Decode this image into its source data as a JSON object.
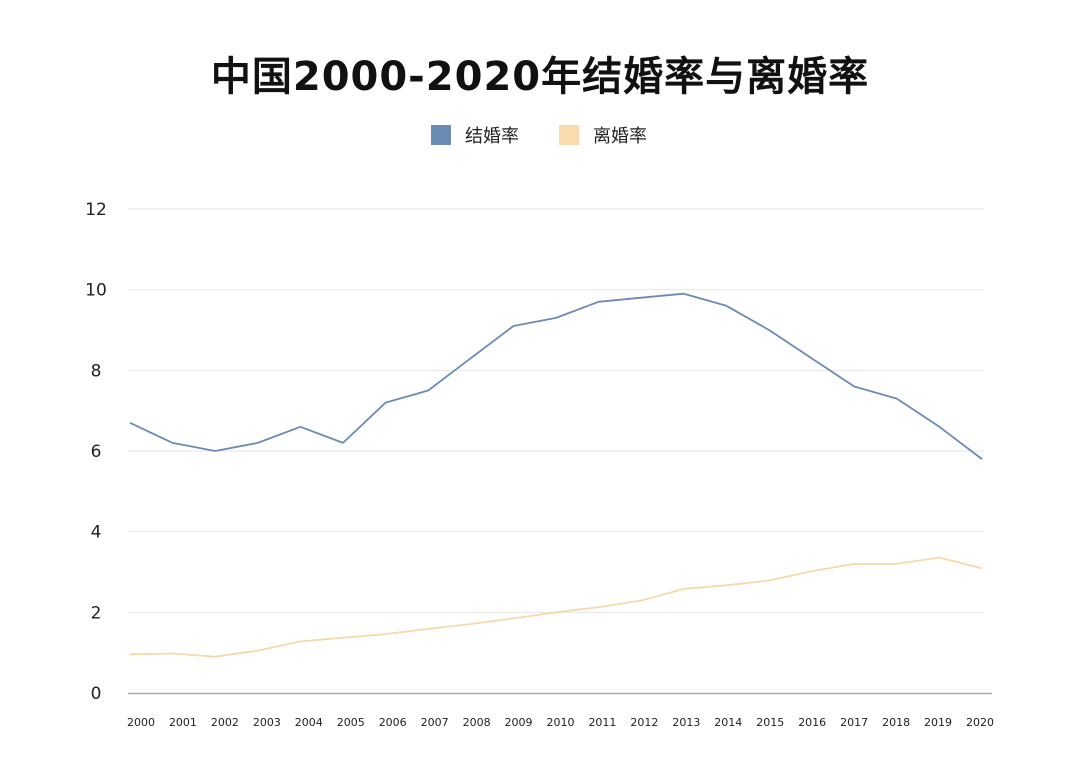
{
  "chart_data": {
    "type": "line",
    "title": "中国2000-2020年结婚率与离婚率",
    "x": [
      "2000",
      "2001",
      "2002",
      "2003",
      "2004",
      "2005",
      "2006",
      "2007",
      "2008",
      "2009",
      "2010",
      "2011",
      "2012",
      "2013",
      "2014",
      "2015",
      "2016",
      "2017",
      "2018",
      "2019",
      "2020"
    ],
    "series": [
      {
        "name": "结婚率",
        "color": "#6b8bb5",
        "values": [
          6.7,
          6.2,
          6.0,
          6.2,
          6.6,
          6.2,
          7.2,
          7.5,
          8.3,
          9.1,
          9.3,
          9.7,
          9.8,
          9.9,
          9.6,
          9.0,
          8.3,
          7.6,
          7.3,
          6.6,
          5.8
        ]
      },
      {
        "name": "离婚率",
        "color": "#f5d9a8",
        "values": [
          0.96,
          0.98,
          0.9,
          1.05,
          1.28,
          1.37,
          1.46,
          1.59,
          1.71,
          1.85,
          2.0,
          2.13,
          2.29,
          2.58,
          2.67,
          2.79,
          3.02,
          3.2,
          3.2,
          3.36,
          3.09
        ]
      }
    ],
    "yticks": [
      "0",
      "2",
      "4",
      "6",
      "8",
      "10",
      "12"
    ],
    "ylim": [
      0,
      12
    ],
    "grid": true,
    "legend_position": "top-center",
    "xlabel": "",
    "ylabel": ""
  }
}
